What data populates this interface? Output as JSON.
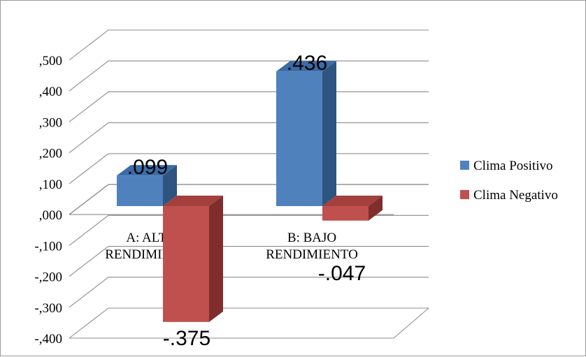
{
  "chart_data": {
    "type": "bar",
    "title": "",
    "xlabel": "",
    "ylabel": "",
    "categories": [
      "A: ALTO\nRENDIMIENTO",
      "B: BAJO\nRENDIMIENTO"
    ],
    "series": [
      {
        "name": "Clima Positivo",
        "values": [
          0.099,
          0.436
        ],
        "labels": [
          ".099",
          ".436"
        ]
      },
      {
        "name": "Clima Negativo",
        "values": [
          -0.375,
          -0.047
        ],
        "labels": [
          "-.375",
          "-.047"
        ]
      }
    ],
    "ylim": [
      -0.4,
      0.5
    ],
    "yticks": [
      0.5,
      0.4,
      0.3,
      0.2,
      0.1,
      0.0,
      -0.1,
      -0.2,
      -0.3,
      -0.4
    ],
    "ytick_labels": [
      ",500",
      ",400",
      ",300",
      ",200",
      ",100",
      ",000",
      "-,100",
      "-,200",
      "-,300",
      "-,400"
    ],
    "grid": true,
    "three_d": true,
    "legend_position": "right",
    "colors": {
      "series_front": [
        "#4f81bd",
        "#c0504d"
      ],
      "series_top": [
        "#3a6ca6",
        "#a33f3c"
      ],
      "series_side": [
        "#2e5480",
        "#7f2e2c"
      ],
      "grid": "#8c8c8c",
      "text": "#000000"
    }
  }
}
